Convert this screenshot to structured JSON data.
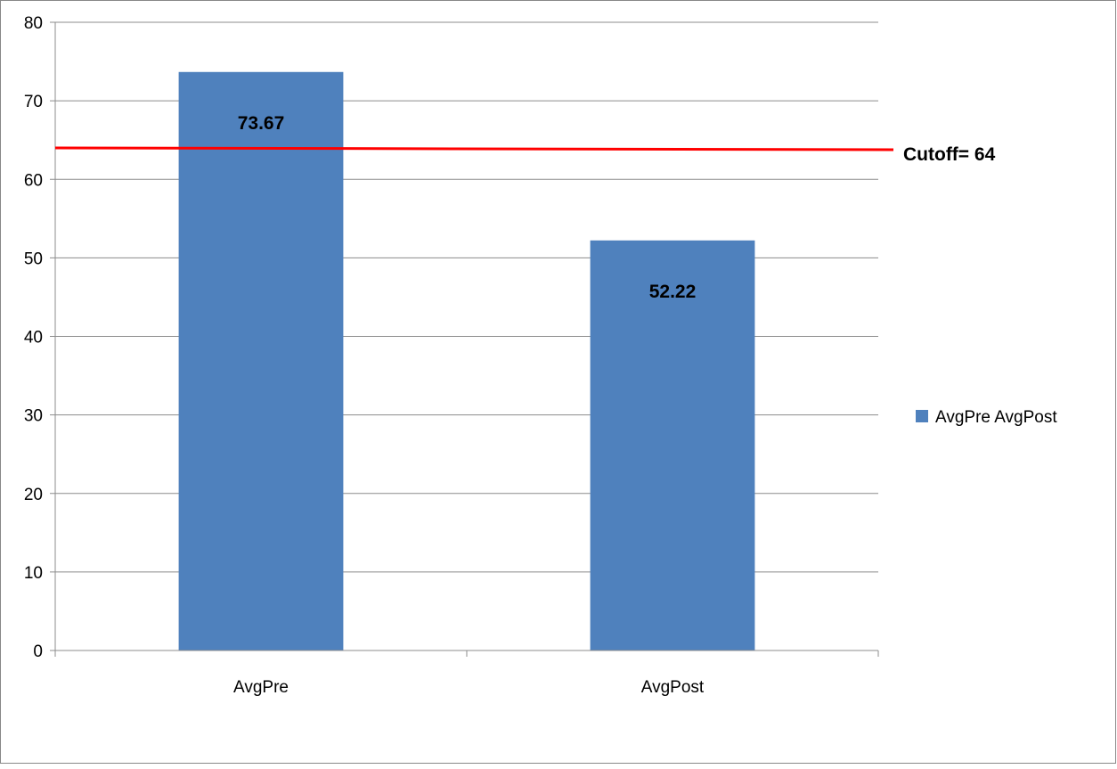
{
  "chart_data": {
    "type": "bar",
    "categories": [
      "AvgPre",
      "AvgPost"
    ],
    "series": [
      {
        "name": "AvgPre AvgPost",
        "values": [
          73.67,
          52.22
        ],
        "color": "#4F81BD"
      }
    ],
    "data_labels": [
      "73.67",
      "52.22"
    ],
    "ylim": [
      0,
      80
    ],
    "yticks": [
      0,
      10,
      20,
      30,
      40,
      50,
      60,
      70,
      80
    ],
    "grid": true,
    "legend": {
      "position": "right",
      "entries": [
        "AvgPre AvgPost"
      ]
    },
    "reference_line": {
      "value": 64,
      "label": "Cutoff= 64",
      "color": "#FF0000"
    },
    "title": "",
    "xlabel": "",
    "ylabel": ""
  }
}
